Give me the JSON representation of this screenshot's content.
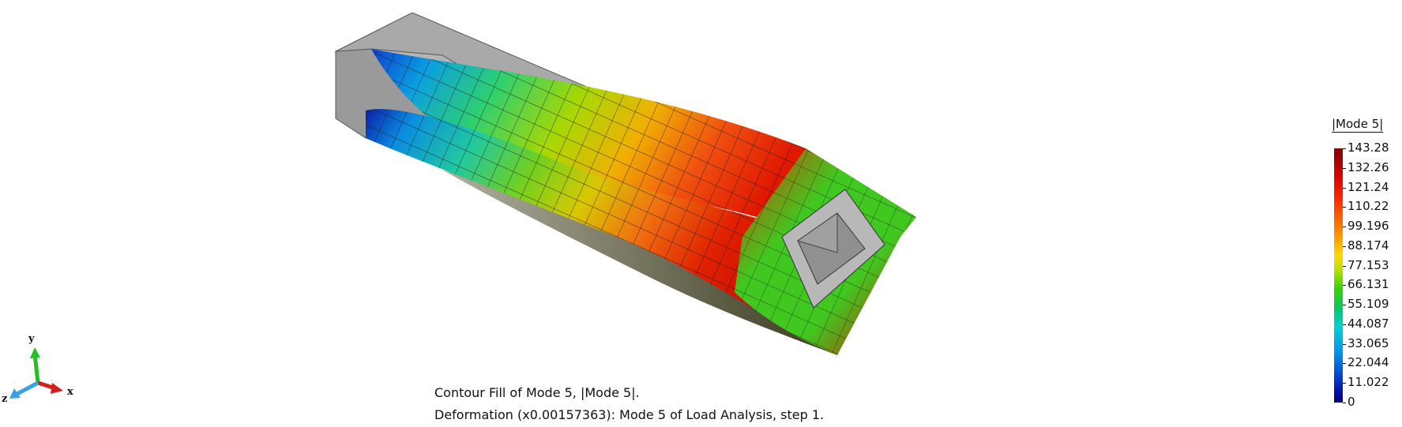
{
  "caption": {
    "line1": "Contour Fill of Mode 5, |Mode 5|.",
    "line2": "Deformation (x0.00157363): Mode 5 of Load Analysis, step 1."
  },
  "legend": {
    "title": "|Mode 5|",
    "ticks": [
      "143.28",
      "132.26",
      "121.24",
      "110.22",
      "99.196",
      "88.174",
      "77.153",
      "66.131",
      "55.109",
      "44.087",
      "33.065",
      "22.044",
      "11.022",
      "0"
    ]
  },
  "triad": {
    "y": "y",
    "x": "x",
    "z": "z"
  },
  "colors": {
    "background": "#ffffff",
    "edge_gray": "#a9a9a9"
  }
}
